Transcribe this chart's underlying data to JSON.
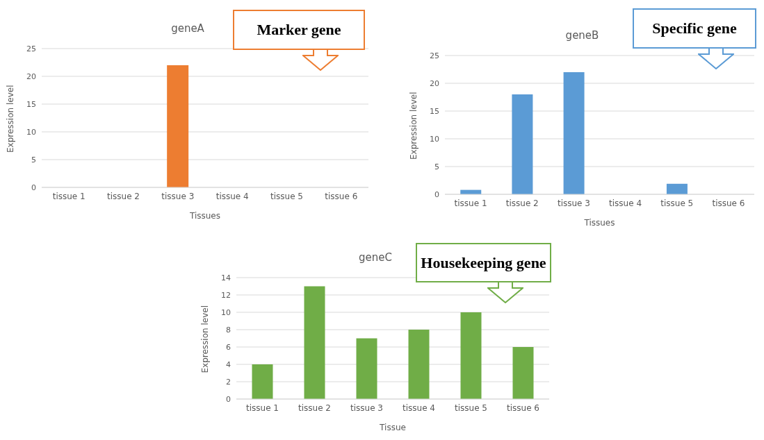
{
  "chart_data": [
    {
      "type": "bar",
      "title": "geneA",
      "xlabel": "Tissues",
      "ylabel": "Expression level",
      "categories": [
        "tissue 1",
        "tissue 2",
        "tissue 3",
        "tissue 4",
        "tissue 5",
        "tissue 6"
      ],
      "values": [
        0,
        0,
        22,
        0,
        0,
        0
      ],
      "color": "#ed7d31",
      "ylim": [
        0,
        25
      ],
      "yticks": [
        0,
        5,
        10,
        15,
        20,
        25
      ],
      "grid": "y",
      "annotations": [
        "Marker gene"
      ]
    },
    {
      "type": "bar",
      "title": "geneB",
      "xlabel": "Tissues",
      "ylabel": "Expression level",
      "categories": [
        "tissue 1",
        "tissue 2",
        "tissue 3",
        "tissue 4",
        "tissue 5",
        "tissue 6"
      ],
      "values": [
        0.8,
        18,
        22,
        0,
        1.9,
        0
      ],
      "color": "#5b9bd5",
      "ylim": [
        0,
        25
      ],
      "yticks": [
        0,
        5,
        10,
        15,
        20,
        25
      ],
      "grid": "y",
      "annotations": [
        "Specific gene"
      ]
    },
    {
      "type": "bar",
      "title": "geneC",
      "xlabel": "Tissue",
      "ylabel": "Expression level",
      "categories": [
        "tissue 1",
        "tissue 2",
        "tissue 3",
        "tissue 4",
        "tissue 5",
        "tissue 6"
      ],
      "values": [
        4,
        13,
        7,
        8,
        10,
        6
      ],
      "color": "#70ad47",
      "ylim": [
        0,
        14
      ],
      "yticks": [
        0,
        2,
        4,
        6,
        8,
        10,
        12,
        14
      ],
      "grid": "y",
      "annotations": [
        "Housekeeping gene"
      ]
    }
  ]
}
